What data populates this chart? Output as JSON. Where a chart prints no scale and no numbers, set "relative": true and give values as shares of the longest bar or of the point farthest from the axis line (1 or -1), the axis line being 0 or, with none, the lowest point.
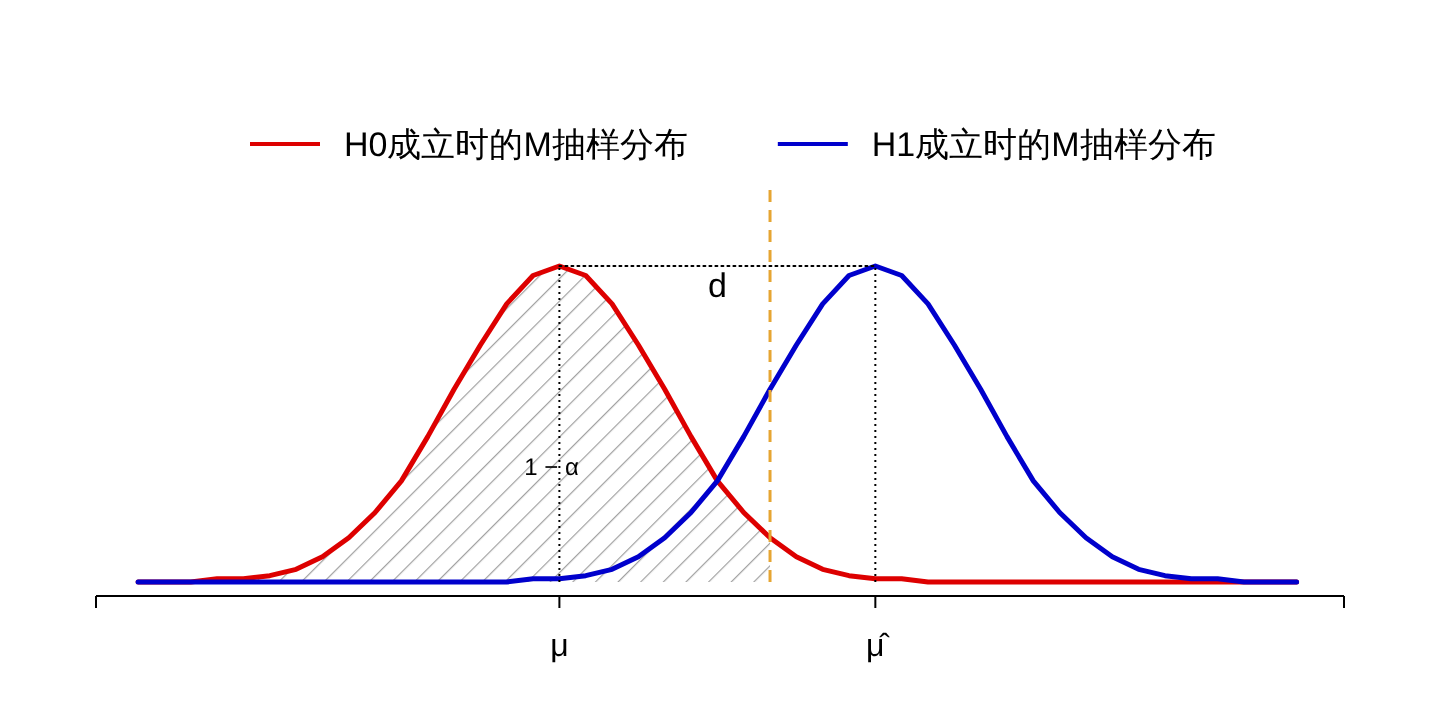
{
  "chart_data": {
    "type": "line",
    "relative": true,
    "legend": "top",
    "categories": [
      null,
      null,
      null,
      null,
      null,
      null,
      null,
      null,
      null,
      null,
      null,
      null,
      null,
      null,
      null,
      null,
      "μ",
      null,
      null,
      null,
      null,
      null,
      null,
      null,
      null,
      null,
      null,
      null,
      "μ̂",
      null,
      null,
      null,
      null,
      null,
      null,
      null,
      null,
      null,
      null,
      null,
      null,
      null,
      null,
      null,
      null
    ],
    "series": [
      {
        "type": "area",
        "color": "#a0a0a0",
        "values": [
          0,
          0,
          0,
          0.01,
          0.01,
          0.02,
          0.04,
          0.08,
          0.14,
          0.22,
          0.32,
          0.46,
          0.61,
          0.75,
          0.88,
          0.97,
          1,
          0.97,
          0.88,
          0.75,
          0.61,
          0.46,
          0.32,
          0.22,
          0.14,
          null,
          null,
          null,
          null,
          null,
          null,
          null,
          null,
          null,
          null,
          null,
          null,
          null,
          null,
          null,
          null,
          null,
          null,
          null,
          null
        ]
      },
      {
        "name": "H0成立时的M抽样分布",
        "color": "#dd0000",
        "values": [
          0,
          0,
          0,
          0.01,
          0.01,
          0.02,
          0.04,
          0.08,
          0.14,
          0.22,
          0.32,
          0.46,
          0.61,
          0.75,
          0.88,
          0.97,
          1,
          0.97,
          0.88,
          0.75,
          0.61,
          0.46,
          0.32,
          0.22,
          0.14,
          0.08,
          0.04,
          0.02,
          0.01,
          0.01,
          0,
          0,
          0,
          0,
          0,
          0,
          0,
          0,
          0,
          0,
          0,
          0,
          0,
          0,
          0
        ]
      },
      {
        "name": "H1成立时的M抽样分布",
        "color": "#0000cc",
        "values": [
          0,
          0,
          0,
          0,
          0,
          0,
          0,
          0,
          0,
          0,
          0,
          0,
          0,
          0,
          0,
          0.01,
          0.01,
          0.02,
          0.04,
          0.08,
          0.14,
          0.22,
          0.32,
          0.46,
          0.61,
          0.75,
          0.88,
          0.97,
          1,
          0.97,
          0.88,
          0.75,
          0.61,
          0.46,
          0.32,
          0.22,
          0.14,
          0.08,
          0.04,
          0.02,
          0.01,
          0.01,
          0,
          0,
          0
        ]
      },
      {
        "color": "#000000",
        "line_style": "dotted",
        "values": [
          null,
          null,
          null,
          null,
          null,
          null,
          null,
          null,
          null,
          null,
          null,
          null,
          null,
          null,
          null,
          null,
          1,
          1,
          1,
          1,
          1,
          1,
          1,
          1,
          1,
          1,
          1,
          1,
          1,
          null,
          null,
          null,
          null,
          null,
          null,
          null,
          null,
          null,
          null,
          null,
          null,
          null,
          null,
          null,
          null
        ]
      }
    ],
    "ref_lines": [
      {
        "axis": "x",
        "value": "μ",
        "color": "#000000",
        "line_style": "dotted"
      },
      {
        "axis": "x",
        "value": "μ̂",
        "color": "#000000",
        "line_style": "dotted"
      }
    ],
    "annotations": [
      "d",
      "1 − α"
    ]
  }
}
